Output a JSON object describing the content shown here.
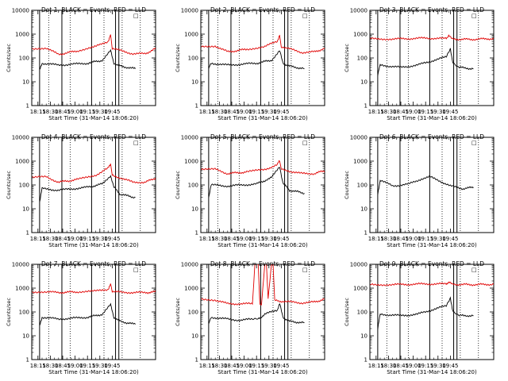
{
  "figure": {
    "xlabel": "Start Time (31-Mar-14 18:06:20)",
    "ylabel": "Counts/sec",
    "legend_marker": "□"
  },
  "chart_data": [
    {
      "type": "line",
      "title": "Det 1, BLACK = Events, RED = LLD",
      "ylim": [
        1,
        10000
      ],
      "yscale": "log",
      "y_ticks": [
        "1",
        "10",
        "100",
        "1000",
        "10000"
      ],
      "x_ticks": [
        "18:15",
        "18:30",
        "18:45",
        "19:00",
        "19:15",
        "19:30",
        "19:45"
      ],
      "xlim_min": [
        6.3,
        106.3
      ],
      "solid_lines_min": [
        2,
        29,
        65,
        94,
        98
      ],
      "dotted_lines_min": [
        13,
        39,
        80,
        102,
        124
      ],
      "series": [
        {
          "name": "BLACK",
          "color": "#000000",
          "values": [
            [
              2,
              30
            ],
            [
              5,
              60
            ],
            [
              25,
              50
            ],
            [
              60,
              60
            ],
            [
              78,
              80
            ],
            [
              88,
              200
            ],
            [
              92,
              60
            ],
            [
              100,
              45
            ],
            [
              118,
              35
            ]
          ]
        },
        {
          "name": "RED",
          "color": "#e00000",
          "values": [
            [
              -7,
              250
            ],
            [
              10,
              260
            ],
            [
              25,
              140
            ],
            [
              48,
              200
            ],
            [
              70,
              300
            ],
            [
              85,
              500
            ],
            [
              88,
              900
            ],
            [
              90,
              250
            ],
            [
              115,
              150
            ],
            [
              130,
              150
            ],
            [
              143,
              250
            ]
          ]
        }
      ]
    },
    {
      "type": "line",
      "title": "Det 2, BLACK = Events, RED = LLD",
      "ylim": [
        1,
        10000
      ],
      "yscale": "log",
      "y_ticks": [
        "1",
        "10",
        "100",
        "1000",
        "10000"
      ],
      "x_ticks": [
        "18:15",
        "18:30",
        "18:45",
        "19:00",
        "19:15",
        "19:30",
        "19:45"
      ],
      "xlim_min": [
        6.3,
        106.3
      ],
      "solid_lines_min": [
        2,
        29,
        65,
        94,
        98
      ],
      "dotted_lines_min": [
        13,
        39,
        80,
        102,
        124
      ],
      "series": [
        {
          "name": "BLACK",
          "color": "#000000",
          "values": [
            [
              2,
              35
            ],
            [
              5,
              60
            ],
            [
              25,
              50
            ],
            [
              60,
              60
            ],
            [
              78,
              80
            ],
            [
              88,
              200
            ],
            [
              92,
              60
            ],
            [
              100,
              45
            ],
            [
              118,
              35
            ]
          ]
        },
        {
          "name": "RED",
          "color": "#e00000",
          "values": [
            [
              -7,
              300
            ],
            [
              10,
              320
            ],
            [
              25,
              180
            ],
            [
              48,
              230
            ],
            [
              70,
              300
            ],
            [
              85,
              500
            ],
            [
              88,
              900
            ],
            [
              90,
              300
            ],
            [
              115,
              170
            ],
            [
              130,
              180
            ],
            [
              143,
              250
            ]
          ]
        }
      ]
    },
    {
      "type": "line",
      "title": "Det 3, BLACK = Events, RED = LLD",
      "ylim": [
        1,
        10000
      ],
      "yscale": "log",
      "y_ticks": [
        "1",
        "10",
        "100",
        "1000",
        "10000"
      ],
      "x_ticks": [
        "18:15",
        "18:30",
        "18:45",
        "19:00",
        "19:15",
        "19:30",
        "19:45"
      ],
      "xlim_min": [
        6.3,
        106.3
      ],
      "solid_lines_min": [
        2,
        29,
        65,
        94,
        98
      ],
      "dotted_lines_min": [
        13,
        39,
        80,
        102,
        124
      ],
      "series": [
        {
          "name": "BLACK",
          "color": "#000000",
          "values": [
            [
              2,
              20
            ],
            [
              5,
              50
            ],
            [
              30,
              40
            ],
            [
              50,
              50
            ],
            [
              70,
              80
            ],
            [
              85,
              110
            ],
            [
              90,
              250
            ],
            [
              93,
              60
            ],
            [
              100,
              40
            ],
            [
              118,
              35
            ]
          ]
        },
        {
          "name": "RED",
          "color": "#e00000",
          "values": [
            [
              -7,
              650
            ],
            [
              20,
              620
            ],
            [
              60,
              680
            ],
            [
              85,
              650
            ],
            [
              88,
              900
            ],
            [
              92,
              620
            ],
            [
              115,
              600
            ],
            [
              143,
              650
            ]
          ]
        }
      ]
    },
    {
      "type": "line",
      "title": "Det 4, BLACK = Events, RED = LLD",
      "ylim": [
        1,
        10000
      ],
      "yscale": "log",
      "y_ticks": [
        "1",
        "10",
        "100",
        "1000",
        "10000"
      ],
      "x_ticks": [
        "18:15",
        "18:30",
        "18:45",
        "19:00",
        "19:15",
        "19:30",
        "19:45"
      ],
      "xlim_min": [
        6.3,
        106.3
      ],
      "solid_lines_min": [
        2,
        29,
        65,
        94,
        98
      ],
      "dotted_lines_min": [
        13,
        39,
        80,
        102,
        124
      ],
      "series": [
        {
          "name": "BLACK",
          "color": "#000000",
          "values": [
            [
              2,
              20
            ],
            [
              5,
              70
            ],
            [
              25,
              60
            ],
            [
              60,
              80
            ],
            [
              78,
              110
            ],
            [
              88,
              250
            ],
            [
              92,
              80
            ],
            [
              100,
              40
            ],
            [
              118,
              30
            ]
          ]
        },
        {
          "name": "RED",
          "color": "#e00000",
          "values": [
            [
              -7,
              200
            ],
            [
              10,
              220
            ],
            [
              25,
              130
            ],
            [
              48,
              170
            ],
            [
              70,
              260
            ],
            [
              85,
              500
            ],
            [
              88,
              800
            ],
            [
              90,
              260
            ],
            [
              115,
              130
            ],
            [
              130,
              130
            ],
            [
              143,
              200
            ]
          ]
        }
      ]
    },
    {
      "type": "line",
      "title": "Det 5, BLACK = Events, RED = LLD",
      "ylim": [
        1,
        10000
      ],
      "yscale": "log",
      "y_ticks": [
        "1",
        "10",
        "100",
        "1000",
        "10000"
      ],
      "x_ticks": [
        "18:15",
        "18:30",
        "18:45",
        "19:00",
        "19:15",
        "19:30",
        "19:45"
      ],
      "xlim_min": [
        6.3,
        106.3
      ],
      "solid_lines_min": [
        2,
        29,
        65,
        94,
        98
      ],
      "dotted_lines_min": [
        13,
        39,
        80,
        102,
        124
      ],
      "series": [
        {
          "name": "BLACK",
          "color": "#000000",
          "values": [
            [
              2,
              30
            ],
            [
              5,
              100
            ],
            [
              25,
              90
            ],
            [
              60,
              110
            ],
            [
              78,
              200
            ],
            [
              88,
              600
            ],
            [
              92,
              120
            ],
            [
              100,
              60
            ],
            [
              118,
              45
            ]
          ]
        },
        {
          "name": "RED",
          "color": "#e00000",
          "values": [
            [
              -7,
              450
            ],
            [
              10,
              450
            ],
            [
              25,
              300
            ],
            [
              48,
              350
            ],
            [
              70,
              450
            ],
            [
              85,
              700
            ],
            [
              88,
              1100
            ],
            [
              90,
              450
            ],
            [
              115,
              300
            ],
            [
              130,
              300
            ],
            [
              143,
              400
            ]
          ]
        }
      ]
    },
    {
      "type": "line",
      "title": "Det 6, BLACK = Events, RED = LLD",
      "ylim": [
        1,
        10000
      ],
      "yscale": "log",
      "y_ticks": [
        "1",
        "10",
        "100",
        "1000",
        "10000"
      ],
      "x_ticks": [
        "18:15",
        "18:30",
        "18:45",
        "19:00",
        "19:15",
        "19:30",
        "19:45"
      ],
      "xlim_min": [
        6.3,
        106.3
      ],
      "solid_lines_min": [
        2,
        29,
        65,
        94,
        98
      ],
      "dotted_lines_min": [
        13,
        39,
        80,
        102,
        124
      ],
      "series": [
        {
          "name": "BLACK",
          "color": "#000000",
          "values": [
            [
              2,
              40
            ],
            [
              5,
              160
            ],
            [
              20,
              90
            ],
            [
              40,
              110
            ],
            [
              55,
              180
            ],
            [
              65,
              220
            ],
            [
              75,
              160
            ],
            [
              90,
              90
            ],
            [
              105,
              70
            ],
            [
              118,
              80
            ]
          ]
        }
      ]
    },
    {
      "type": "line",
      "title": "Det 7, BLACK = Events, RED = LLD",
      "ylim": [
        1,
        10000
      ],
      "yscale": "log",
      "y_ticks": [
        "1",
        "10",
        "100",
        "1000",
        "10000"
      ],
      "x_ticks": [
        "18:15",
        "18:30",
        "18:45",
        "19:00",
        "19:15",
        "19:30",
        "19:45"
      ],
      "xlim_min": [
        6.3,
        106.3
      ],
      "solid_lines_min": [
        2,
        29,
        65,
        94,
        98
      ],
      "dotted_lines_min": [
        13,
        39,
        80,
        102,
        124
      ],
      "series": [
        {
          "name": "BLACK",
          "color": "#000000",
          "values": [
            [
              2,
              25
            ],
            [
              5,
              60
            ],
            [
              25,
              50
            ],
            [
              60,
              60
            ],
            [
              78,
              80
            ],
            [
              88,
              200
            ],
            [
              92,
              60
            ],
            [
              100,
              40
            ],
            [
              118,
              30
            ]
          ]
        },
        {
          "name": "RED",
          "color": "#e00000",
          "values": [
            [
              -7,
              700
            ],
            [
              10,
              700
            ],
            [
              25,
              650
            ],
            [
              48,
              700
            ],
            [
              70,
              750
            ],
            [
              85,
              900
            ],
            [
              88,
              1400
            ],
            [
              90,
              700
            ],
            [
              115,
              650
            ],
            [
              130,
              650
            ],
            [
              143,
              700
            ]
          ]
        }
      ]
    },
    {
      "type": "line",
      "title": "Det 8, BLACK = Events, RED = LLD",
      "ylim": [
        1,
        10000
      ],
      "yscale": "log",
      "y_ticks": [
        "1",
        "10",
        "100",
        "1000",
        "10000"
      ],
      "x_ticks": [
        "18:15",
        "18:30",
        "18:45",
        "19:00",
        "19:15",
        "19:30",
        "19:45"
      ],
      "xlim_min": [
        6.3,
        106.3
      ],
      "solid_lines_min": [
        2,
        29,
        65,
        94,
        98
      ],
      "dotted_lines_min": [
        13,
        39,
        80,
        102,
        124
      ],
      "series": [
        {
          "name": "BLACK",
          "color": "#000000",
          "values": [
            [
              2,
              30
            ],
            [
              5,
              60
            ],
            [
              25,
              50
            ],
            [
              40,
              45
            ],
            [
              55,
              50
            ],
            [
              62,
              50
            ],
            [
              70,
              80
            ],
            [
              85,
              120
            ],
            [
              88,
              220
            ],
            [
              92,
              60
            ],
            [
              100,
              40
            ],
            [
              118,
              35
            ]
          ]
        },
        {
          "name": "RED",
          "color": "#e00000",
          "values": [
            [
              -7,
              350
            ],
            [
              10,
              320
            ],
            [
              25,
              220
            ],
            [
              40,
              220
            ],
            [
              55,
              220
            ],
            [
              58,
              10000
            ],
            [
              62,
              10000
            ],
            [
              64,
              220
            ],
            [
              66,
              220
            ],
            [
              70,
              10000
            ],
            [
              72,
              10000
            ],
            [
              74,
              350
            ],
            [
              78,
              10000
            ],
            [
              80,
              10000
            ],
            [
              82,
              300
            ],
            [
              90,
              280
            ],
            [
              115,
              240
            ],
            [
              130,
              260
            ],
            [
              143,
              350
            ]
          ]
        }
      ]
    },
    {
      "type": "line",
      "title": "Det 9, BLACK = Events, RED = LLD",
      "ylim": [
        1,
        10000
      ],
      "yscale": "log",
      "y_ticks": [
        "1",
        "10",
        "100",
        "1000",
        "10000"
      ],
      "x_ticks": [
        "18:15",
        "18:30",
        "18:45",
        "19:00",
        "19:15",
        "19:30",
        "19:45"
      ],
      "xlim_min": [
        6.3,
        106.3
      ],
      "solid_lines_min": [
        2,
        29,
        65,
        94,
        98
      ],
      "dotted_lines_min": [
        13,
        39,
        80,
        102,
        124
      ],
      "series": [
        {
          "name": "BLACK",
          "color": "#000000",
          "values": [
            [
              2,
              20
            ],
            [
              5,
              80
            ],
            [
              30,
              70
            ],
            [
              50,
              80
            ],
            [
              70,
              130
            ],
            [
              85,
              180
            ],
            [
              90,
              400
            ],
            [
              93,
              100
            ],
            [
              100,
              70
            ],
            [
              118,
              70
            ]
          ]
        },
        {
          "name": "RED",
          "color": "#e00000",
          "values": [
            [
              -7,
              1400
            ],
            [
              20,
              1400
            ],
            [
              60,
              1500
            ],
            [
              85,
              1500
            ],
            [
              88,
              1800
            ],
            [
              92,
              1450
            ],
            [
              115,
              1400
            ],
            [
              143,
              1450
            ]
          ]
        }
      ]
    }
  ]
}
